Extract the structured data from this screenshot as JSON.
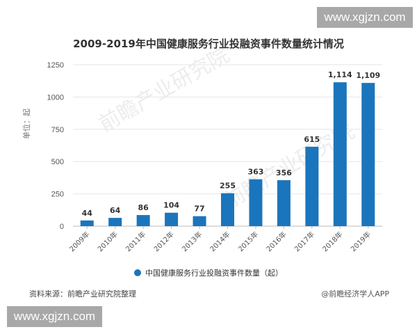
{
  "header": {
    "title": "2009-2019年中国健康服务行业投融资事件数量统计情况"
  },
  "watermarks": {
    "top_right": "www.xgjzn.com",
    "bottom_left": "www.xgjzn.com",
    "background": "前瞻产业研究院"
  },
  "axis": {
    "ylabel": "单位：起",
    "yticks": [
      "0",
      "250",
      "500",
      "750",
      "1000",
      "1250"
    ]
  },
  "legend": {
    "label": "中国健康服务行业投融资事件数量（起）",
    "color": "#1b75bc"
  },
  "footer": {
    "source": "资料来源：前瞻产业研究院整理",
    "credit": "@前瞻经济学人APP"
  },
  "chart_data": {
    "type": "bar",
    "title": "2009-2019年中国健康服务行业投融资事件数量统计情况",
    "xlabel": "",
    "ylabel": "单位：起",
    "categories": [
      "2009年",
      "2010年",
      "2011年",
      "2012年",
      "2013年",
      "2014年",
      "2015年",
      "2016年",
      "2017年",
      "2018年",
      "2019年"
    ],
    "values": [
      44,
      64,
      86,
      104,
      77,
      255,
      363,
      356,
      615,
      1114,
      1109
    ],
    "value_labels": [
      "44",
      "64",
      "86",
      "104",
      "77",
      "255",
      "363",
      "356",
      "615",
      "1,114",
      "1,109"
    ],
    "series": [
      {
        "name": "中国健康服务行业投融资事件数量（起）",
        "color": "#1b75bc",
        "values": [
          44,
          64,
          86,
          104,
          77,
          255,
          363,
          356,
          615,
          1114,
          1109
        ]
      }
    ],
    "ylim": [
      0,
      1250
    ],
    "yticks": [
      0,
      250,
      500,
      750,
      1000,
      1250
    ],
    "grid": true,
    "legend_position": "bottom"
  }
}
